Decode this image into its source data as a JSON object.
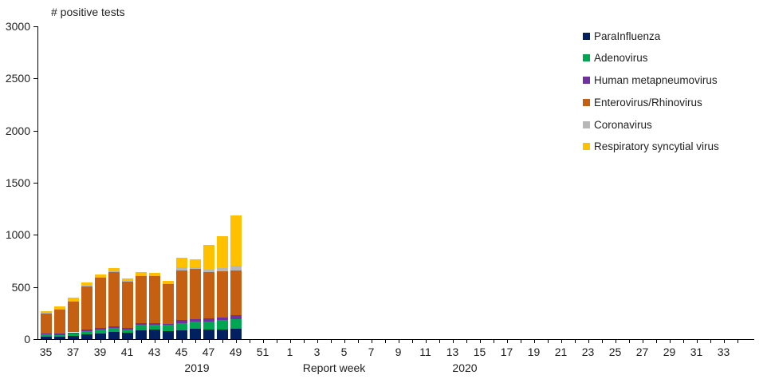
{
  "chart_data": {
    "type": "bar",
    "stacked": true,
    "title": "# positive tests",
    "xlabel": "Report week",
    "ylabel": "",
    "ylim": [
      0,
      3000
    ],
    "ytick_step": 500,
    "ytick_labels": [
      "0",
      "500",
      "1000",
      "1500",
      "2000",
      "2500",
      "3000"
    ],
    "grid": false,
    "legend_position": "right-top",
    "axis_color": "#000000",
    "text_color": "#1f1f1f",
    "x_axis": {
      "years": [
        {
          "year": "2019",
          "week_from": 35,
          "week_to": 52
        },
        {
          "year": "2020",
          "week_from": 1,
          "week_to": 34
        }
      ],
      "xtick_labels_2019": [
        "35",
        "37",
        "39",
        "41",
        "43",
        "45",
        "47",
        "49",
        "51"
      ],
      "xtick_labels_2020": [
        "1",
        "3",
        "5",
        "7",
        "9",
        "11",
        "13",
        "15",
        "17",
        "19",
        "21",
        "23",
        "25",
        "27",
        "29",
        "31",
        "33"
      ],
      "year_labels": [
        "2019",
        "2020"
      ]
    },
    "data_weeks": [
      35,
      36,
      37,
      38,
      39,
      40,
      41,
      42,
      43,
      44,
      45,
      46,
      47,
      48,
      49
    ],
    "data_weeks_year": "2019",
    "series": [
      {
        "name": "ParaInfluenza",
        "color": "#002060",
        "values": [
          25,
          20,
          30,
          45,
          50,
          70,
          60,
          85,
          90,
          80,
          85,
          100,
          95,
          90,
          100
        ]
      },
      {
        "name": "Adenovirus",
        "color": "#00A651",
        "values": [
          25,
          20,
          25,
          30,
          45,
          35,
          35,
          55,
          50,
          55,
          70,
          70,
          75,
          90,
          90
        ]
      },
      {
        "name": "Human metapneumovirus",
        "color": "#7030A0",
        "values": [
          5,
          10,
          10,
          20,
          10,
          20,
          15,
          10,
          10,
          10,
          30,
          20,
          30,
          25,
          40
        ]
      },
      {
        "name": "Enterovirus/Rhinovirus",
        "color": "#C55F11",
        "values": [
          190,
          235,
          300,
          415,
          485,
          520,
          440,
          460,
          455,
          385,
          475,
          480,
          440,
          445,
          430
        ]
      },
      {
        "name": "Coronavirus",
        "color": "#B7B7B7",
        "values": [
          5,
          5,
          5,
          5,
          5,
          10,
          5,
          5,
          5,
          5,
          30,
          20,
          25,
          30,
          45
        ]
      },
      {
        "name": "Respiratory syncytial virus",
        "color": "#FFC000",
        "values": [
          15,
          20,
          25,
          25,
          25,
          25,
          25,
          25,
          25,
          20,
          90,
          75,
          235,
          310,
          480
        ]
      }
    ],
    "bar_totals": [
      265,
      310,
      395,
      540,
      620,
      680,
      580,
      640,
      635,
      555,
      780,
      765,
      900,
      990,
      1185
    ]
  }
}
